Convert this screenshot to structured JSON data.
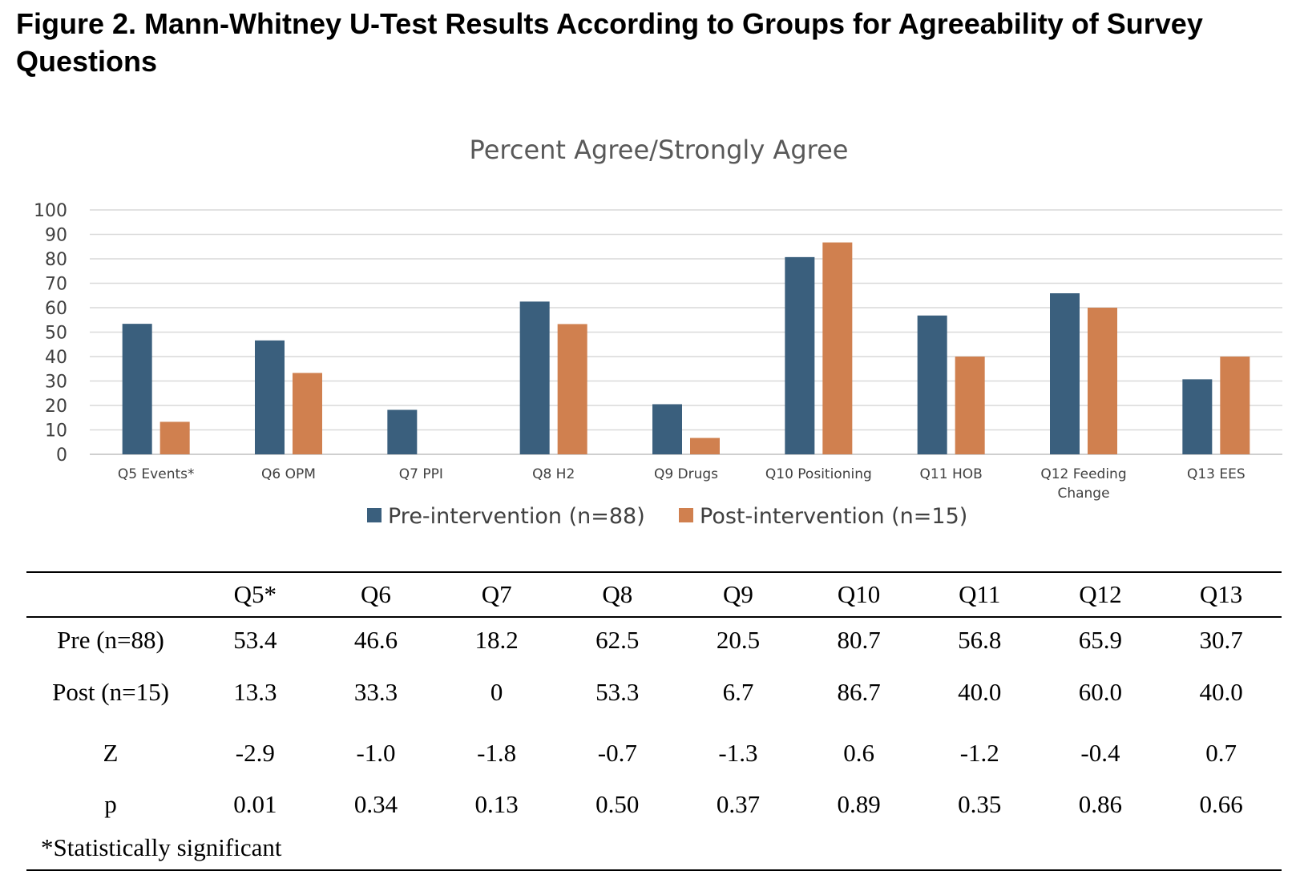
{
  "figure_title": "Figure 2. Mann-Whitney U-Test Results According to Groups for Agreeability of Survey Questions",
  "chart_data": {
    "type": "bar",
    "title": "Percent Agree/Strongly Agree",
    "categories": [
      "Q5 Events*",
      "Q6 OPM",
      "Q7 PPI",
      "Q8 H2",
      "Q9 Drugs",
      "Q10 Positioning",
      "Q11 HOB",
      "Q12 Feeding Change",
      "Q13 EES"
    ],
    "series": [
      {
        "name": "Pre-intervention (n=88)",
        "color": "#3a5f7d",
        "values": [
          53.4,
          46.6,
          18.2,
          62.5,
          20.5,
          80.7,
          56.8,
          65.9,
          30.7
        ]
      },
      {
        "name": "Post-intervention (n=15)",
        "color": "#d0804f",
        "values": [
          13.3,
          33.3,
          0,
          53.3,
          6.7,
          86.7,
          40.0,
          60.0,
          40.0
        ]
      }
    ],
    "ylim": [
      0,
      100
    ],
    "yticks": [
      0,
      10,
      20,
      30,
      40,
      50,
      60,
      70,
      80,
      90,
      100
    ],
    "grid": true,
    "legend": "bottom"
  },
  "table": {
    "header": [
      "",
      "Q5*",
      "Q6",
      "Q7",
      "Q8",
      "Q9",
      "Q10",
      "Q11",
      "Q12",
      "Q13"
    ],
    "rows": [
      {
        "label": "Pre (n=88)",
        "cells": [
          "53.4",
          "46.6",
          "18.2",
          "62.5",
          "20.5",
          "80.7",
          "56.8",
          "65.9",
          "30.7"
        ]
      },
      {
        "label": "Post (n=15)",
        "cells": [
          "13.3",
          "33.3",
          "0",
          "53.3",
          "6.7",
          "86.7",
          "40.0",
          "60.0",
          "40.0"
        ]
      },
      {
        "label": "Z",
        "cells": [
          "-2.9",
          "-1.0",
          "-1.8",
          "-0.7",
          "-1.3",
          "0.6",
          "-1.2",
          "-0.4",
          "0.7"
        ]
      },
      {
        "label": "p",
        "cells": [
          "0.01",
          "0.34",
          "0.13",
          "0.50",
          "0.37",
          "0.89",
          "0.35",
          "0.86",
          "0.66"
        ]
      }
    ],
    "footnote": "*Statistically significant"
  }
}
